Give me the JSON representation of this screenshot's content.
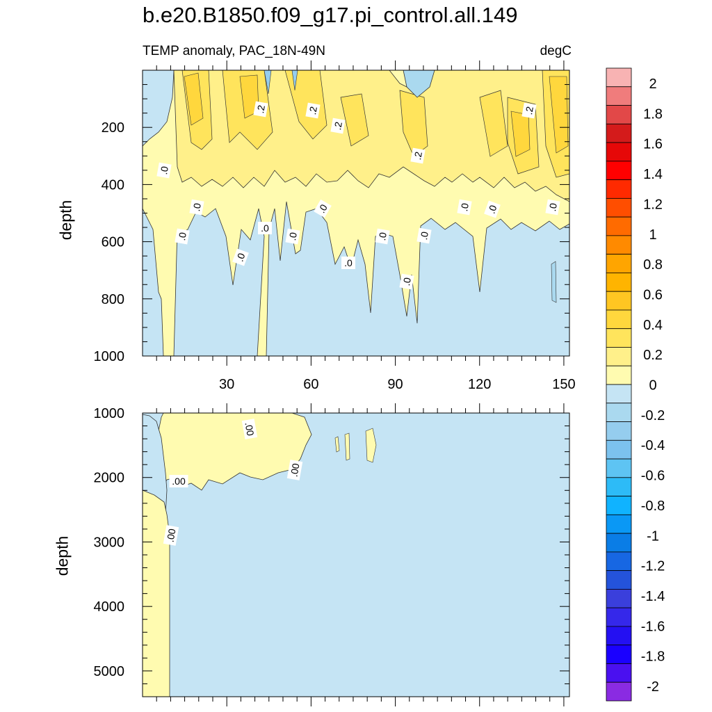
{
  "title": "b.e20.B1850.f09_g17.pi_control.all.149",
  "subtitle": "TEMP anomaly, PAC_18N-49N",
  "units": "degC",
  "chart_data": [
    {
      "type": "heatmap",
      "panel": "upper",
      "ylabel": "depth",
      "xlabel": "",
      "xlim": [
        0,
        152
      ],
      "ylim": [
        1000,
        0
      ],
      "x_ticks": [
        30,
        60,
        90,
        120,
        150
      ],
      "y_ticks": [
        200,
        400,
        600,
        800,
        1000
      ],
      "contour_labels": [
        ".2",
        ".2",
        ".2",
        ".2",
        ".2",
        ".0",
        ".0",
        ".0",
        ".0",
        ".0",
        ".0",
        ".0",
        ".0",
        ".0",
        ".0",
        ".0",
        ".0",
        ".0",
        ".0",
        ".0"
      ],
      "zero_contour_depth_estimate": {
        "x": [
          0,
          5,
          10,
          15,
          20,
          30,
          40,
          50,
          60,
          70,
          80,
          90,
          100,
          110,
          120,
          130,
          140,
          150
        ],
        "depth": [
          300,
          340,
          420,
          560,
          480,
          560,
          620,
          560,
          560,
          640,
          680,
          800,
          560,
          520,
          500,
          560,
          540,
          540
        ]
      }
    },
    {
      "type": "heatmap",
      "panel": "lower",
      "ylabel": "depth",
      "xlabel": "",
      "xlim": [
        0,
        152
      ],
      "ylim": [
        5400,
        1000
      ],
      "y_ticks": [
        1000,
        2000,
        3000,
        4000,
        5000
      ],
      "contour_labels": [
        ".00",
        ".00",
        ".00",
        ".00"
      ]
    }
  ],
  "colorbar": {
    "labels": [
      "2",
      "1.8",
      "1.6",
      "1.4",
      "1.2",
      "1",
      "0.8",
      "0.6",
      "0.4",
      "0.2",
      "0",
      "-0.2",
      "-0.4",
      "-0.6",
      "-0.8",
      "-1",
      "-1.2",
      "-1.4",
      "-1.6",
      "-1.8",
      "-2"
    ],
    "colors": [
      "#f8b3b3",
      "#f07c7c",
      "#e24848",
      "#d41b1b",
      "#e60808",
      "#ff0000",
      "#ff2a00",
      "#ff4e00",
      "#ff6b00",
      "#ff8a00",
      "#ffa500",
      "#ffb400",
      "#ffc622",
      "#ffd73d",
      "#ffe45c",
      "#fff08a",
      "#fffbb0",
      "#c5e4f4",
      "#aad9ef",
      "#95cdee",
      "#7cc2ee",
      "#5ec4f3",
      "#2dbbf7",
      "#10b3ff",
      "#0a98f5",
      "#0a7de6",
      "#1767e3",
      "#2453db",
      "#3a3fdc",
      "#3528ea",
      "#2410f2",
      "#1a00ff",
      "#4a10f0",
      "#8a2be2"
    ]
  }
}
